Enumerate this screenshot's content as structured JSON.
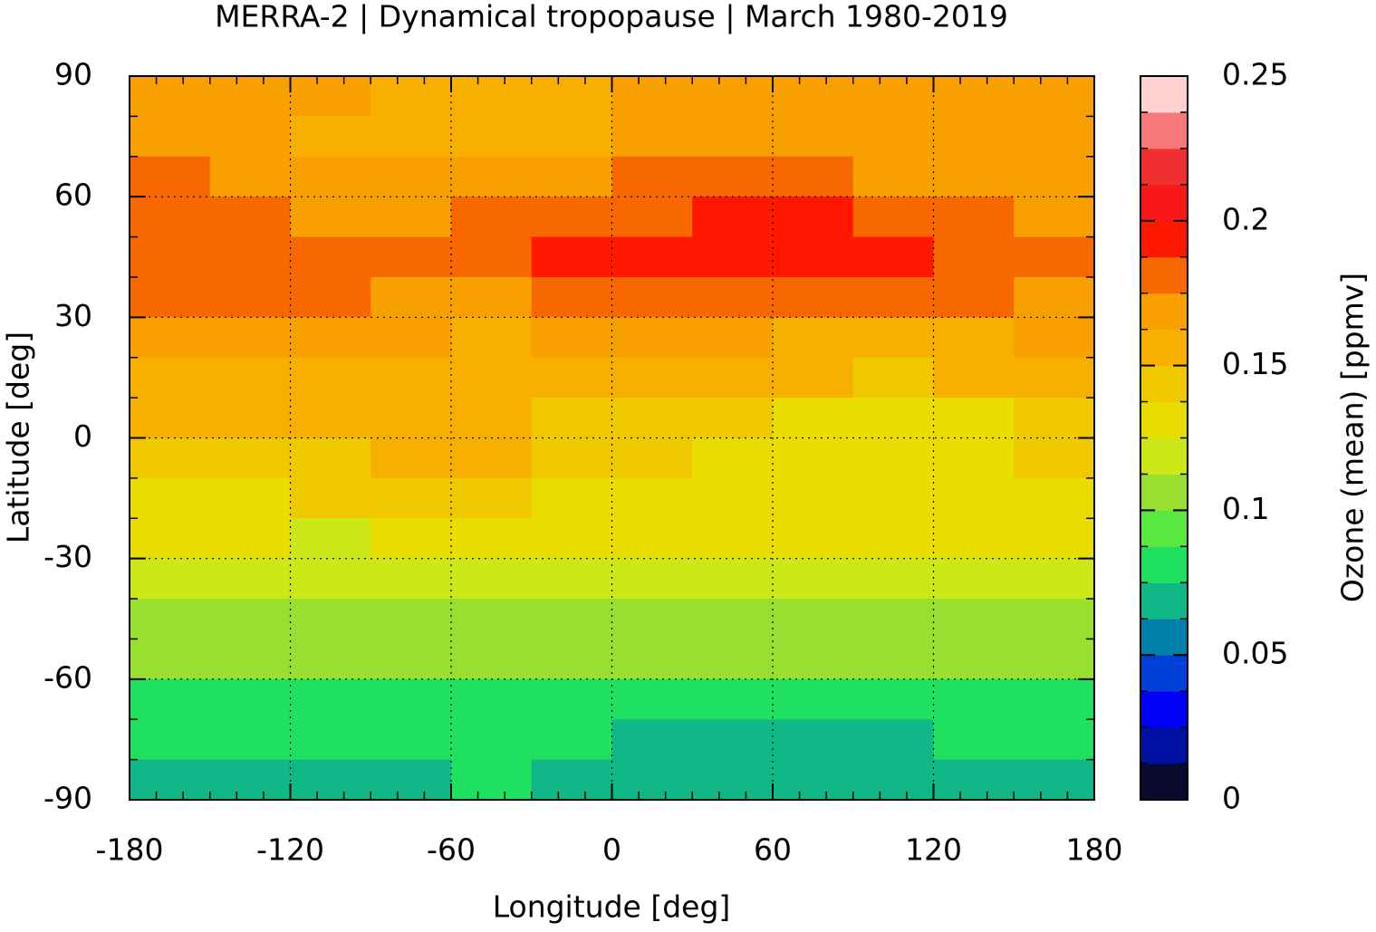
{
  "chart_data": {
    "type": "heatmap",
    "title": "MERRA-2 | Dynamical tropopause | March 1980-2019",
    "xlabel": "Longitude [deg]",
    "ylabel": "Latitude [deg]",
    "xlim": [
      -180,
      180
    ],
    "ylim": [
      -90,
      90
    ],
    "xticks": [
      -180,
      -120,
      -60,
      0,
      60,
      120,
      180
    ],
    "yticks": [
      -90,
      -60,
      -30,
      0,
      30,
      60,
      90
    ],
    "grid": true,
    "x": [
      -165,
      -135,
      -105,
      -75,
      -45,
      -15,
      15,
      45,
      75,
      105,
      135,
      165
    ],
    "y": [
      85,
      75,
      65,
      55,
      45,
      35,
      25,
      15,
      5,
      -5,
      -15,
      -25,
      -35,
      -45,
      -55,
      -65,
      -75,
      -85
    ],
    "z": [
      [
        0.165,
        0.165,
        0.165,
        0.16,
        0.155,
        0.155,
        0.165,
        0.165,
        0.165,
        0.165,
        0.165,
        0.165
      ],
      [
        0.165,
        0.17,
        0.16,
        0.16,
        0.155,
        0.16,
        0.165,
        0.17,
        0.165,
        0.165,
        0.165,
        0.165
      ],
      [
        0.175,
        0.17,
        0.165,
        0.165,
        0.165,
        0.17,
        0.175,
        0.175,
        0.175,
        0.17,
        0.17,
        0.17
      ],
      [
        0.175,
        0.175,
        0.17,
        0.17,
        0.175,
        0.18,
        0.185,
        0.19,
        0.19,
        0.18,
        0.175,
        0.17
      ],
      [
        0.18,
        0.185,
        0.18,
        0.175,
        0.18,
        0.19,
        0.19,
        0.19,
        0.19,
        0.19,
        0.18,
        0.175
      ],
      [
        0.18,
        0.18,
        0.175,
        0.17,
        0.17,
        0.185,
        0.18,
        0.175,
        0.175,
        0.175,
        0.175,
        0.17
      ],
      [
        0.165,
        0.165,
        0.165,
        0.165,
        0.16,
        0.165,
        0.165,
        0.165,
        0.16,
        0.16,
        0.16,
        0.165
      ],
      [
        0.16,
        0.155,
        0.155,
        0.16,
        0.155,
        0.155,
        0.16,
        0.155,
        0.15,
        0.145,
        0.15,
        0.155
      ],
      [
        0.15,
        0.15,
        0.15,
        0.15,
        0.15,
        0.145,
        0.145,
        0.14,
        0.135,
        0.13,
        0.135,
        0.14
      ],
      [
        0.145,
        0.145,
        0.145,
        0.15,
        0.15,
        0.14,
        0.14,
        0.135,
        0.135,
        0.13,
        0.13,
        0.14
      ],
      [
        0.135,
        0.13,
        0.14,
        0.14,
        0.14,
        0.135,
        0.135,
        0.135,
        0.135,
        0.135,
        0.135,
        0.135
      ],
      [
        0.13,
        0.125,
        0.12,
        0.13,
        0.135,
        0.135,
        0.135,
        0.135,
        0.13,
        0.135,
        0.135,
        0.13
      ],
      [
        0.12,
        0.12,
        0.12,
        0.12,
        0.12,
        0.12,
        0.12,
        0.12,
        0.12,
        0.12,
        0.12,
        0.12
      ],
      [
        0.11,
        0.11,
        0.11,
        0.11,
        0.11,
        0.11,
        0.11,
        0.11,
        0.11,
        0.11,
        0.11,
        0.11
      ],
      [
        0.1,
        0.1,
        0.1,
        0.1,
        0.1,
        0.1,
        0.1,
        0.1,
        0.1,
        0.1,
        0.1,
        0.1
      ],
      [
        0.085,
        0.085,
        0.085,
        0.085,
        0.085,
        0.085,
        0.085,
        0.085,
        0.085,
        0.085,
        0.085,
        0.085
      ],
      [
        0.08,
        0.08,
        0.08,
        0.08,
        0.08,
        0.08,
        0.07,
        0.07,
        0.07,
        0.07,
        0.075,
        0.08
      ],
      [
        0.07,
        0.07,
        0.07,
        0.07,
        0.075,
        0.07,
        0.07,
        0.07,
        0.07,
        0.07,
        0.07,
        0.07
      ]
    ],
    "colorbar": {
      "label": "Ozone (mean) [ppmv]",
      "clim": [
        0,
        0.25
      ],
      "ticks": [
        0,
        0.05,
        0.1,
        0.15,
        0.2,
        0.25
      ],
      "colors": [
        "#0a0a30",
        "#0010a0",
        "#0000f8",
        "#0040d8",
        "#0080a8",
        "#10b888",
        "#20e060",
        "#58e840",
        "#98e030",
        "#cce818",
        "#e8dc00",
        "#f0c800",
        "#f8b000",
        "#f8a000",
        "#f86800",
        "#ff1800",
        "#f81818",
        "#f03030",
        "#f87878",
        "#ffd0d0"
      ]
    }
  }
}
